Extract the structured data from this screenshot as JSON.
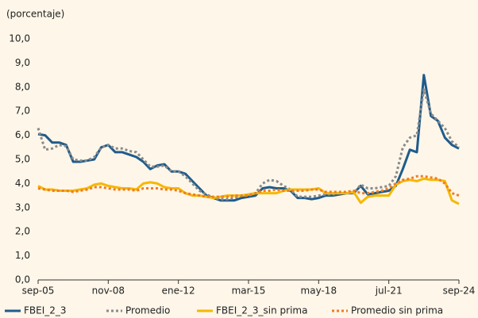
{
  "chart_data": {
    "type": "line",
    "y_label": "(porcentaje)",
    "categories": [
      "sep-05",
      null,
      null,
      null,
      null,
      null,
      null,
      null,
      null,
      null,
      "nov-08",
      null,
      null,
      null,
      null,
      null,
      null,
      null,
      null,
      null,
      "ene-12",
      null,
      null,
      null,
      null,
      null,
      null,
      null,
      null,
      null,
      "mar-15",
      null,
      null,
      null,
      null,
      null,
      null,
      null,
      null,
      null,
      "may-18",
      null,
      null,
      null,
      null,
      null,
      null,
      null,
      null,
      null,
      "jul-21",
      null,
      null,
      null,
      null,
      null,
      null,
      null,
      null,
      null,
      "sep-24"
    ],
    "ylim": [
      0,
      10
    ],
    "yticks": [
      {
        "value": 0,
        "label": "0,0"
      },
      {
        "value": 1,
        "label": "1,0"
      },
      {
        "value": 2,
        "label": "2,0"
      },
      {
        "value": 3,
        "label": "3,0"
      },
      {
        "value": 4,
        "label": "4,0"
      },
      {
        "value": 5,
        "label": "5,0"
      },
      {
        "value": 6,
        "label": "6,0"
      },
      {
        "value": 7,
        "label": "7,0"
      },
      {
        "value": 8,
        "label": "8,0"
      },
      {
        "value": 9,
        "label": "9,0"
      },
      {
        "value": 10,
        "label": "10,0"
      }
    ],
    "series": [
      {
        "name": "FBEI_2_3",
        "color": "#1f5c8b",
        "style": "solid",
        "values": [
          6.05,
          6.0,
          5.7,
          5.7,
          5.6,
          4.9,
          4.9,
          4.95,
          5.0,
          5.5,
          5.6,
          5.3,
          5.3,
          5.2,
          5.1,
          4.9,
          4.6,
          4.75,
          4.8,
          4.5,
          4.5,
          4.4,
          4.1,
          3.8,
          3.5,
          3.4,
          3.3,
          3.3,
          3.3,
          3.4,
          3.45,
          3.5,
          3.8,
          3.85,
          3.8,
          3.8,
          3.7,
          3.4,
          3.4,
          3.35,
          3.4,
          3.5,
          3.5,
          3.55,
          3.6,
          3.6,
          3.9,
          3.55,
          3.6,
          3.65,
          3.7,
          3.9,
          4.6,
          5.4,
          5.3,
          8.5,
          6.8,
          6.6,
          5.9,
          5.6,
          5.45
        ]
      },
      {
        "name": "Promedio",
        "color": "#8a8a8a",
        "style": "dotted",
        "values": [
          6.3,
          5.4,
          5.45,
          5.6,
          5.55,
          5.0,
          4.95,
          4.95,
          5.1,
          5.5,
          5.6,
          5.45,
          5.45,
          5.35,
          5.3,
          5.0,
          4.7,
          4.7,
          4.75,
          4.5,
          4.5,
          4.3,
          4.0,
          3.7,
          3.55,
          3.4,
          3.35,
          3.35,
          3.4,
          3.5,
          3.5,
          3.6,
          4.0,
          4.15,
          4.1,
          3.9,
          3.75,
          3.45,
          3.45,
          3.45,
          3.5,
          3.55,
          3.55,
          3.6,
          3.6,
          3.6,
          3.95,
          3.8,
          3.8,
          3.85,
          3.9,
          4.3,
          5.5,
          5.9,
          6.0,
          7.9,
          6.9,
          6.6,
          6.3,
          5.75,
          5.5
        ]
      },
      {
        "name": "FBEI_2_3_sin prima",
        "color": "#f5b800",
        "style": "solid",
        "values": [
          3.9,
          3.75,
          3.75,
          3.7,
          3.7,
          3.7,
          3.75,
          3.8,
          3.95,
          4.0,
          3.9,
          3.85,
          3.8,
          3.8,
          3.75,
          4.0,
          4.05,
          4.0,
          3.85,
          3.8,
          3.8,
          3.6,
          3.5,
          3.5,
          3.45,
          3.4,
          3.45,
          3.5,
          3.5,
          3.5,
          3.55,
          3.6,
          3.6,
          3.6,
          3.6,
          3.7,
          3.75,
          3.75,
          3.75,
          3.75,
          3.8,
          3.6,
          3.6,
          3.6,
          3.6,
          3.65,
          3.2,
          3.45,
          3.5,
          3.5,
          3.5,
          3.95,
          4.1,
          4.15,
          4.1,
          4.2,
          4.15,
          4.15,
          4.1,
          3.3,
          3.15
        ]
      },
      {
        "name": "Promedio sin prima",
        "color": "#f07c22",
        "style": "dotted",
        "values": [
          3.8,
          3.75,
          3.7,
          3.7,
          3.7,
          3.65,
          3.7,
          3.75,
          3.85,
          3.85,
          3.8,
          3.75,
          3.75,
          3.75,
          3.7,
          3.8,
          3.8,
          3.8,
          3.75,
          3.75,
          3.7,
          3.6,
          3.55,
          3.5,
          3.45,
          3.45,
          3.45,
          3.45,
          3.5,
          3.5,
          3.5,
          3.6,
          3.7,
          3.7,
          3.75,
          3.7,
          3.7,
          3.7,
          3.7,
          3.75,
          3.75,
          3.65,
          3.65,
          3.65,
          3.65,
          3.7,
          3.6,
          3.6,
          3.65,
          3.7,
          3.8,
          4.0,
          4.15,
          4.2,
          4.3,
          4.3,
          4.25,
          4.2,
          4.0,
          3.6,
          3.5
        ]
      }
    ]
  }
}
